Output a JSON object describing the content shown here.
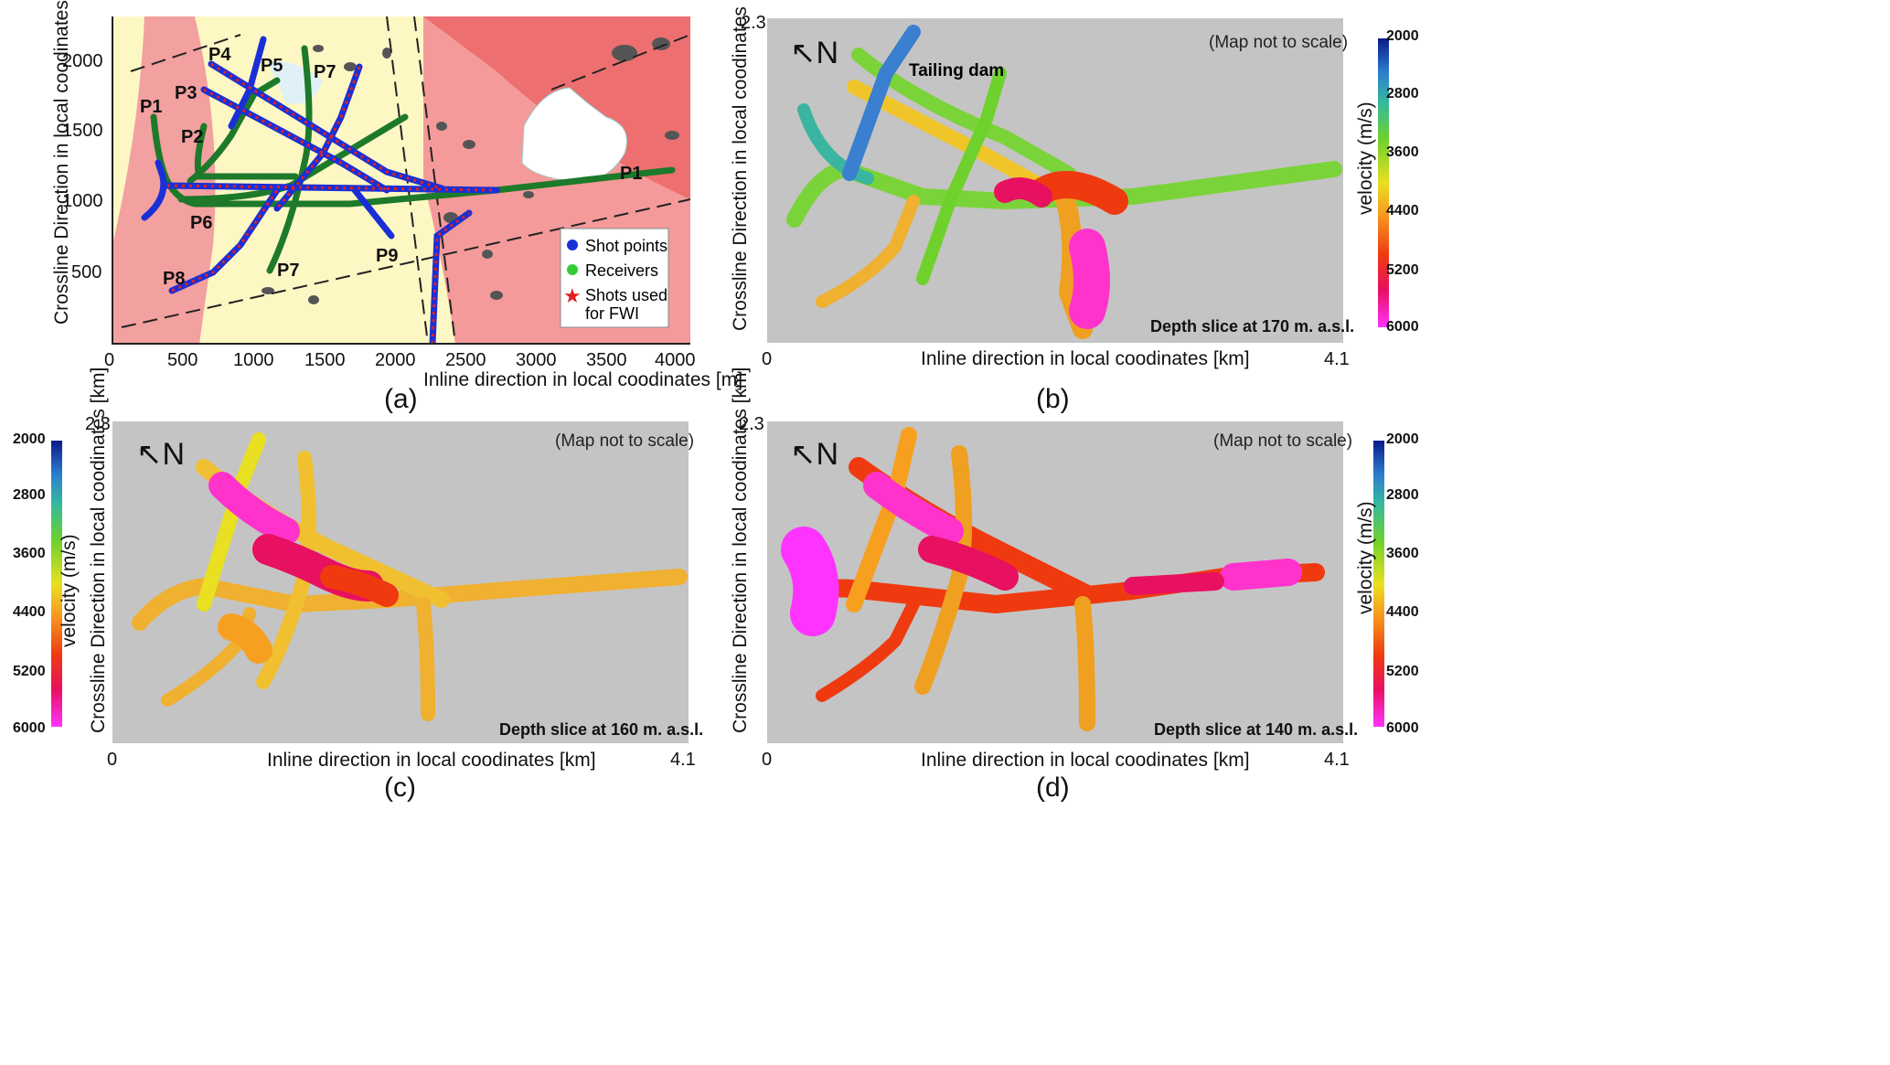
{
  "panel_a": {
    "caption": "(a)",
    "x_label": "Inline direction in local coodinates [m]",
    "y_label": "Crossline Direction in local coodinates [m]",
    "x_ticks": [
      "0",
      "500",
      "1000",
      "1500",
      "2000",
      "2500",
      "3000",
      "3500",
      "4000"
    ],
    "y_ticks": [
      "500",
      "1000",
      "1500",
      "2000"
    ],
    "lines": [
      "P1",
      "P1",
      "P2",
      "P3",
      "P4",
      "P5",
      "P6",
      "P7",
      "P7",
      "P8",
      "P9"
    ],
    "legend": {
      "shot": "Shot points",
      "receivers": "Receivers",
      "fwi_line1": "Shots used",
      "fwi_line2": "for FWI"
    },
    "colors": {
      "shot": "#1a2fd6",
      "receiver": "#1d7a2a",
      "fwi": "#e02020"
    }
  },
  "panel_b": {
    "caption": "(b)",
    "x_label": "Inline direction in local coodinates [km]",
    "y_label": "Crossline Direction in local coodinates [km]",
    "x_min": "0",
    "x_max": "4.1",
    "y_max": "2.3",
    "north": "N",
    "note": "(Map not to scale)",
    "annotation": "Tailing dam",
    "depth": "Depth slice at 170 m. a.s.l."
  },
  "panel_c": {
    "caption": "(c)",
    "x_label": "Inline direction in local coodinates [km]",
    "y_label": "Crossline Direction in local coodinates [km]",
    "x_min": "0",
    "x_max": "4.1",
    "y_max": "2.3",
    "north": "N",
    "note": "(Map not to scale)",
    "depth": "Depth slice at 160 m. a.s.l."
  },
  "panel_d": {
    "caption": "(d)",
    "x_label": "Inline direction in local coodinates [km]",
    "y_label": "Crossline Direction in local coodinates [km]",
    "x_min": "0",
    "x_max": "4.1",
    "y_max": "2.3",
    "north": "N",
    "note": "(Map not to scale)",
    "depth": "Depth slice at 140 m. a.s.l."
  },
  "colorbar": {
    "label": "velocity (m/s)",
    "ticks": [
      "2000",
      "2800",
      "3600",
      "4400",
      "5200",
      "6000"
    ]
  }
}
